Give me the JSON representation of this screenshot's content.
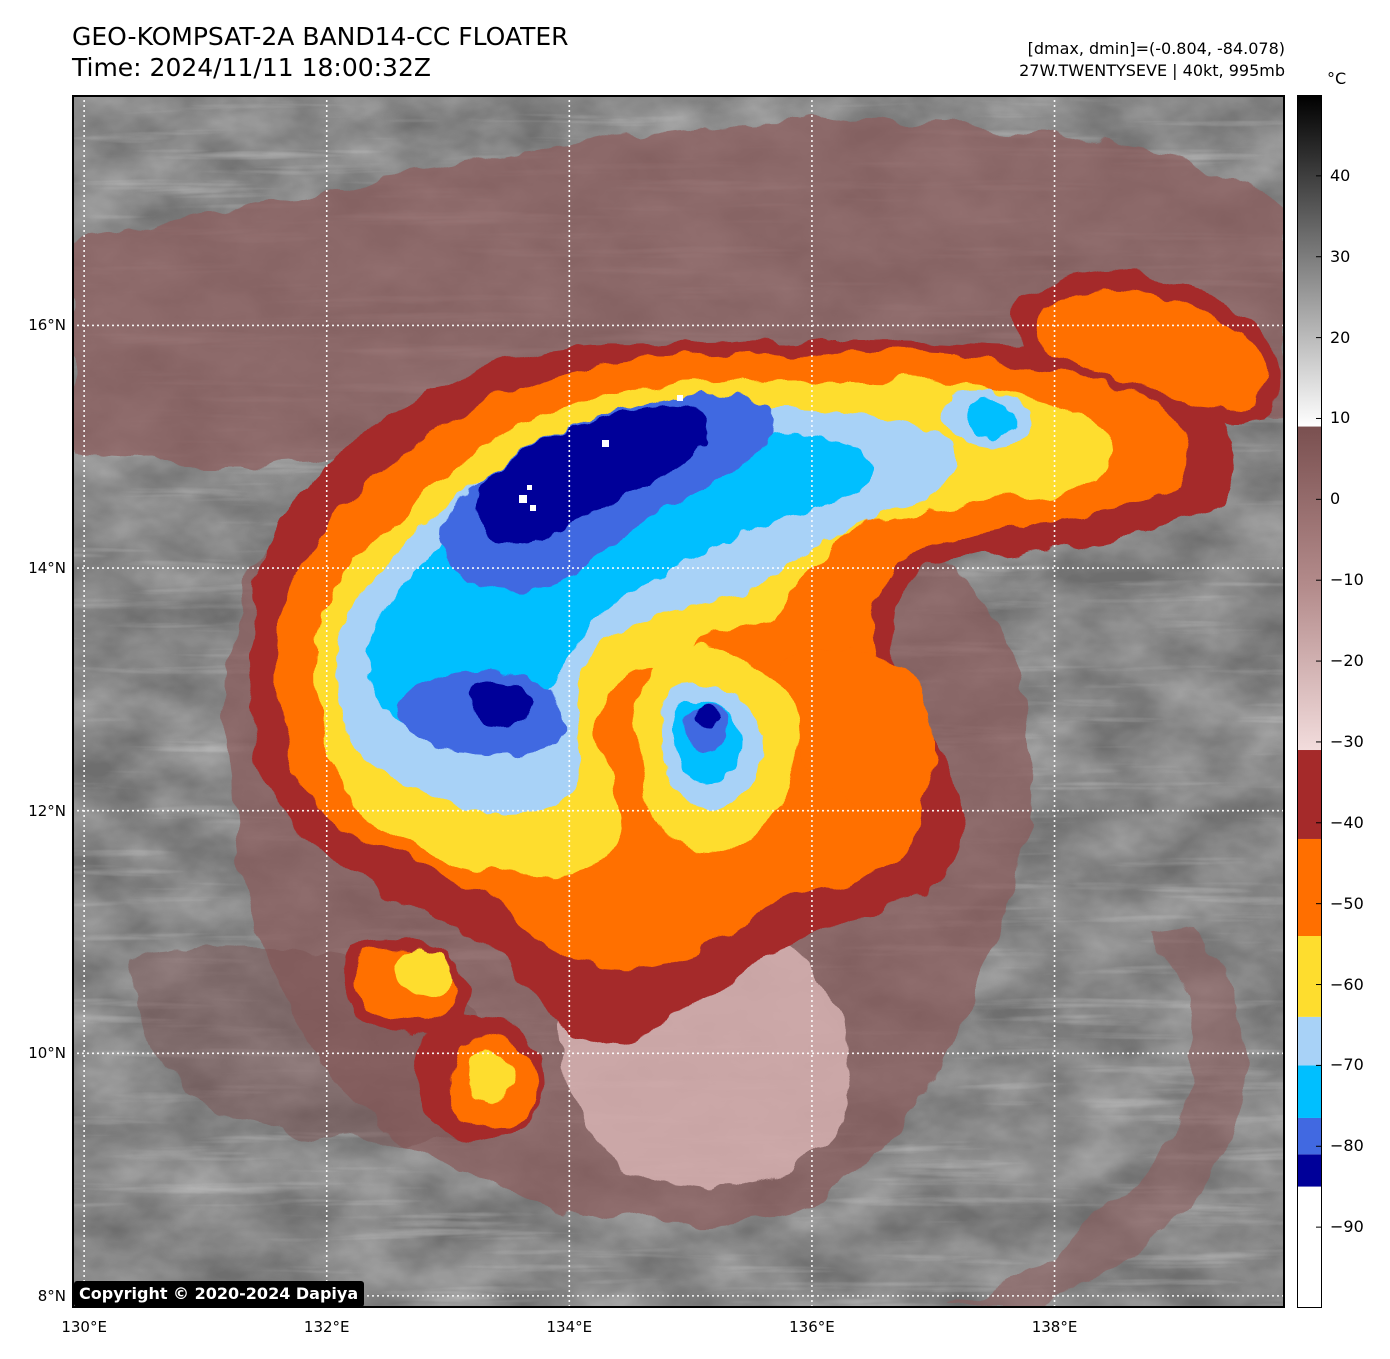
{
  "header": {
    "title_line1": "GEO-KOMPSAT-2A BAND14-CC FLOATER",
    "title_line2": "Time: 2024/11/11 18:00:32Z",
    "stats_line": "[dmax, dmin]=(-0.804, -84.078)",
    "storm_line": "27W.TWENTYSEVE | 40kt, 995mb"
  },
  "map": {
    "lat_range": [
      7.9,
      17.9
    ],
    "lon_range": [
      129.9,
      139.9
    ],
    "lat_ticks": [
      {
        "value": 16,
        "label": "16°N"
      },
      {
        "value": 14,
        "label": "14°N"
      },
      {
        "value": 12,
        "label": "12°N"
      },
      {
        "value": 10,
        "label": "10°N"
      },
      {
        "value": 8,
        "label": "8°N"
      }
    ],
    "lon_ticks": [
      {
        "value": 130,
        "label": "130°E"
      },
      {
        "value": 132,
        "label": "132°E"
      },
      {
        "value": 134,
        "label": "134°E"
      },
      {
        "value": 136,
        "label": "136°E"
      },
      {
        "value": 138,
        "label": "138°E"
      }
    ],
    "gridlines": "dotted"
  },
  "colorbar": {
    "unit_label": "°C",
    "range": [
      -100,
      50
    ],
    "ticks": [
      {
        "value": 40,
        "label": "40"
      },
      {
        "value": 30,
        "label": "30"
      },
      {
        "value": 20,
        "label": "20"
      },
      {
        "value": 10,
        "label": "10"
      },
      {
        "value": 0,
        "label": "0"
      },
      {
        "value": -10,
        "label": "−10"
      },
      {
        "value": -20,
        "label": "−20"
      },
      {
        "value": -30,
        "label": "−30"
      },
      {
        "value": -40,
        "label": "−40"
      },
      {
        "value": -50,
        "label": "−50"
      },
      {
        "value": -60,
        "label": "−60"
      },
      {
        "value": -70,
        "label": "−70"
      },
      {
        "value": -80,
        "label": "−80"
      },
      {
        "value": -90,
        "label": "−90"
      }
    ],
    "bands": [
      {
        "from": -85,
        "to": -81,
        "color": "#000099"
      },
      {
        "from": -81,
        "to": -76.5,
        "color": "#4169e1"
      },
      {
        "from": -76.5,
        "to": -70,
        "color": "#00bfff"
      },
      {
        "from": -70,
        "to": -64,
        "color": "#a8d2f7"
      },
      {
        "from": -64,
        "to": -54,
        "color": "#fedd2e"
      },
      {
        "from": -54,
        "to": -42,
        "color": "#ff6f00"
      },
      {
        "from": -42,
        "to": -31,
        "color": "#a52a2a"
      }
    ]
  },
  "copyright": "Copyright © 2020-2024 Dapiya"
}
